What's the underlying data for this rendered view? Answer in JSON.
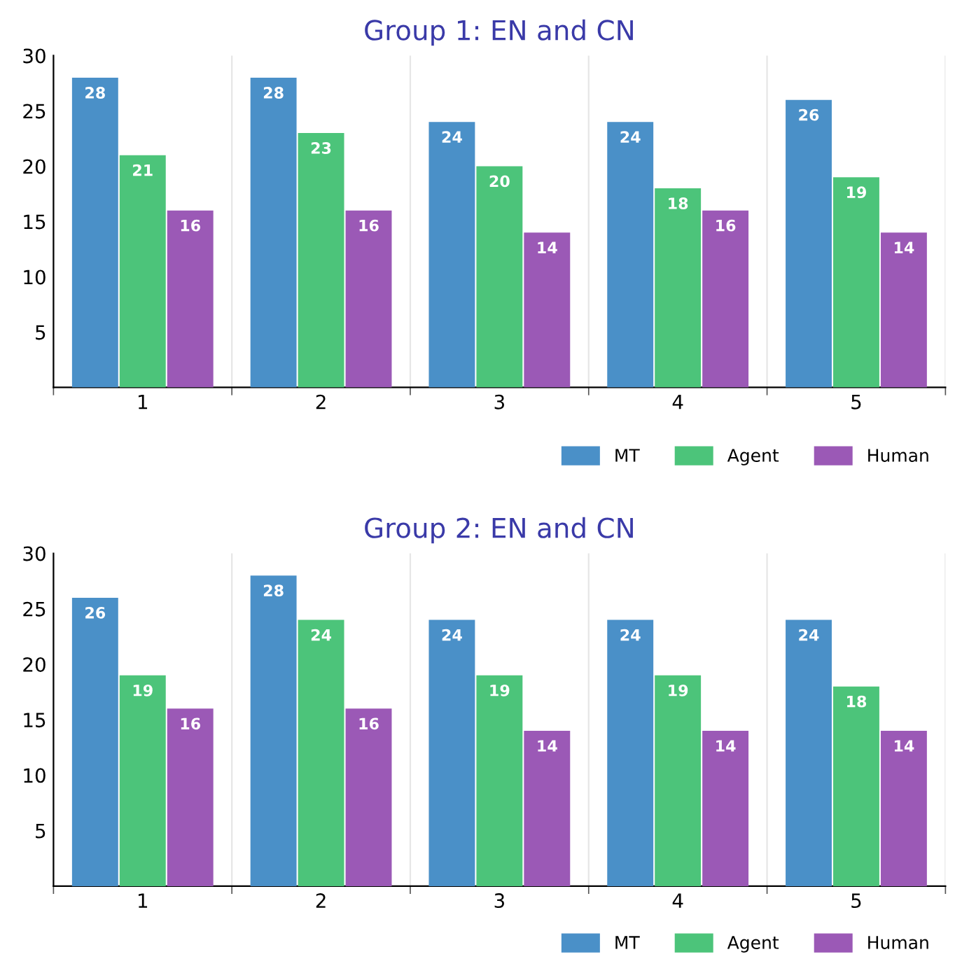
{
  "chart_data": [
    {
      "type": "bar",
      "title": "Group 1: EN and CN",
      "categories": [
        "1",
        "2",
        "3",
        "4",
        "5"
      ],
      "series": [
        {
          "name": "MT",
          "color": "#4a90c8",
          "values": [
            28,
            28,
            24,
            24,
            26
          ]
        },
        {
          "name": "Agent",
          "color": "#4cc47a",
          "values": [
            21,
            23,
            20,
            18,
            19
          ]
        },
        {
          "name": "Human",
          "color": "#9b59b6",
          "values": [
            16,
            16,
            14,
            16,
            14
          ]
        }
      ],
      "ylim": [
        0,
        30
      ],
      "yticks": [
        5,
        10,
        15,
        20,
        25,
        30
      ],
      "grid": "x",
      "legend": "bottom right",
      "data_labels": true
    },
    {
      "type": "bar",
      "title": "Group 2: EN and CN",
      "categories": [
        "1",
        "2",
        "3",
        "4",
        "5"
      ],
      "series": [
        {
          "name": "MT",
          "color": "#4a90c8",
          "values": [
            26,
            28,
            24,
            24,
            24
          ]
        },
        {
          "name": "Agent",
          "color": "#4cc47a",
          "values": [
            19,
            24,
            19,
            19,
            18
          ]
        },
        {
          "name": "Human",
          "color": "#9b59b6",
          "values": [
            16,
            16,
            14,
            14,
            14
          ]
        }
      ],
      "ylim": [
        0,
        30
      ],
      "yticks": [
        5,
        10,
        15,
        20,
        25,
        30
      ],
      "grid": "x",
      "legend": "bottom right",
      "data_labels": true
    }
  ]
}
